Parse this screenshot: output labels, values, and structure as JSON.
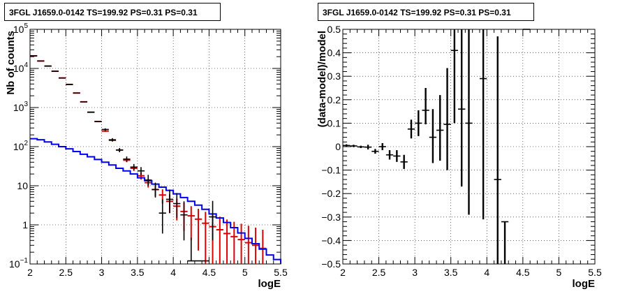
{
  "colors": {
    "data": "#000000",
    "model_total": "#dd0000",
    "model_component": "#0000ee"
  },
  "chart_data": [
    {
      "type": "line",
      "title": "3FGL J1659.0-0142 TS=199.92 PS=0.31 PS=0.31",
      "xlabel": "logE",
      "ylabel": "Nb of counts",
      "xlim": [
        2,
        5.5
      ],
      "ylim": [
        0.1,
        100000
      ],
      "yscale": "log",
      "grid": true,
      "x_ticks": [
        "2",
        "2.5",
        "3",
        "3.5",
        "4",
        "4.5",
        "5",
        "5.5"
      ],
      "y_ticks": [
        "10^-1",
        "1",
        "10",
        "10^2",
        "10^3",
        "10^4",
        "10^5"
      ],
      "bin_edges": [
        2.0,
        2.1,
        2.2,
        2.3,
        2.4,
        2.5,
        2.6,
        2.7,
        2.8,
        2.9,
        3.0,
        3.1,
        3.2,
        3.3,
        3.4,
        3.5,
        3.6,
        3.7,
        3.8,
        3.9,
        4.0,
        4.1,
        4.2,
        4.3,
        4.4,
        4.5,
        4.6,
        4.7,
        4.8,
        4.9,
        5.0,
        5.1,
        5.2,
        5.3,
        5.4,
        5.5
      ],
      "series": [
        {
          "kind": "data_points",
          "x": [
            2.05,
            2.15,
            2.25,
            2.35,
            2.45,
            2.55,
            2.65,
            2.75,
            2.85,
            2.95,
            3.05,
            3.15,
            3.25,
            3.35,
            3.45,
            3.55,
            3.65,
            3.75,
            3.85,
            3.95,
            4.05,
            4.15,
            4.25,
            4.35,
            4.45,
            4.55
          ],
          "y": [
            21000,
            15500,
            11500,
            8500,
            5700,
            3900,
            2350,
            1400,
            760,
            440,
            275,
            150,
            82,
            48,
            30,
            24,
            14,
            8,
            2,
            4.5,
            3.5,
            1.8,
            0.12,
            0.12,
            0.12,
            1.6
          ],
          "y_err_low": [
            0,
            0,
            0,
            0,
            0,
            0,
            0,
            0,
            0,
            0,
            20,
            15,
            10,
            7,
            5,
            5,
            4,
            3,
            1.4,
            2.5,
            2,
            1.4,
            0,
            0,
            0,
            1.2
          ],
          "y_err_high": [
            0,
            0,
            0,
            0,
            0,
            0,
            0,
            0,
            0,
            0,
            20,
            15,
            10,
            8,
            6,
            6,
            5,
            4,
            2.5,
            3.5,
            3,
            2.2,
            0.35,
            0,
            0,
            2.5
          ]
        },
        {
          "kind": "model_total",
          "x": [
            2.05,
            2.15,
            2.25,
            2.35,
            2.45,
            2.55,
            2.65,
            2.75,
            2.85,
            2.95,
            3.05,
            3.15,
            3.25,
            3.35,
            3.45,
            3.55,
            3.65,
            3.75,
            3.85,
            3.95,
            4.05,
            4.15,
            4.25,
            4.35,
            4.45,
            4.55,
            4.65,
            4.75,
            4.85,
            4.95,
            5.05,
            5.15,
            5.25
          ],
          "y": [
            21000,
            15500,
            11500,
            8500,
            5700,
            3900,
            2350,
            1400,
            760,
            440,
            250,
            145,
            82,
            45,
            28,
            18,
            12,
            8,
            5.8,
            4,
            3,
            2.2,
            1.7,
            1.4,
            1.1,
            0.9,
            0.75,
            0.6,
            0.5,
            0.42,
            0.35,
            0.3,
            0.25
          ],
          "y_err_low": [
            0,
            0,
            0,
            0,
            0,
            0,
            0,
            0,
            0,
            0,
            12,
            9,
            7,
            5,
            4,
            3.5,
            3,
            2.7,
            2.3,
            2,
            1.7,
            1.5,
            1.3,
            1.18,
            1.05,
            0.95,
            0.87,
            0.77,
            0.7,
            0.65,
            0.6,
            0.55,
            0.5
          ],
          "y_err_high": [
            0,
            0,
            0,
            0,
            0,
            0,
            0,
            0,
            0,
            0,
            12,
            9,
            7,
            5,
            4,
            3.5,
            3,
            2.7,
            2.3,
            2,
            1.7,
            1.5,
            1.3,
            1.18,
            1.05,
            0.95,
            0.87,
            0.77,
            0.7,
            0.65,
            0.6,
            0.55,
            0.5
          ]
        },
        {
          "kind": "model_component",
          "y": [
            160,
            150,
            132,
            115,
            100,
            88,
            75,
            64,
            55,
            47,
            40,
            34,
            28,
            24,
            20,
            16,
            13.5,
            11,
            9.2,
            7.6,
            6.2,
            5,
            4,
            3.2,
            2.5,
            1.9,
            1.5,
            1.15,
            0.85,
            0.62,
            0.45,
            0.33,
            0.24,
            0.17,
            0.13
          ]
        }
      ]
    },
    {
      "type": "scatter",
      "title": "3FGL J1659.0-0142 TS=199.92 PS=0.31 PS=0.31",
      "xlabel": "logE",
      "ylabel": "(data-model)/model",
      "xlim": [
        2,
        5.5
      ],
      "ylim": [
        -0.5,
        0.5
      ],
      "grid": true,
      "x_ticks": [
        "2",
        "2.5",
        "3",
        "3.5",
        "4",
        "4.5",
        "5",
        "5.5"
      ],
      "y_ticks": [
        "−0.5",
        "−0.4",
        "−0.3",
        "−0.2",
        "−0.1",
        "0",
        "0.1",
        "0.2",
        "0.3",
        "0.4",
        "0.5"
      ],
      "series": [
        {
          "x": [
            2.05,
            2.15,
            2.25,
            2.35,
            2.45,
            2.55,
            2.65,
            2.75,
            2.85,
            2.95,
            3.05,
            3.15,
            3.25,
            3.35,
            3.45,
            3.55,
            3.65,
            3.75,
            3.95,
            4.15,
            4.25,
            4.55
          ],
          "y": [
            0.005,
            0.003,
            -0.001,
            -0.002,
            -0.02,
            0.0,
            -0.035,
            -0.04,
            -0.065,
            0.075,
            0.1,
            0.155,
            0.04,
            0.07,
            0.095,
            0.41,
            0.16,
            0.1,
            0.29,
            -0.14,
            -0.32,
            0.5
          ],
          "y_err_low": [
            0.005,
            0.005,
            0.005,
            0.01,
            0.01,
            0.015,
            0.02,
            0.025,
            0.03,
            0.04,
            0.055,
            0.06,
            0.11,
            0.13,
            0.195,
            0.31,
            0.33,
            0.39,
            0.6,
            0.36,
            0.18,
            0.0
          ],
          "y_err_high": [
            0.005,
            0.005,
            0.005,
            0.01,
            0.01,
            0.015,
            0.02,
            0.025,
            0.03,
            0.04,
            0.055,
            0.095,
            0.12,
            0.15,
            0.24,
            0.09,
            0.34,
            0.4,
            0.21,
            0.61,
            0.0,
            0.0
          ]
        }
      ]
    }
  ]
}
